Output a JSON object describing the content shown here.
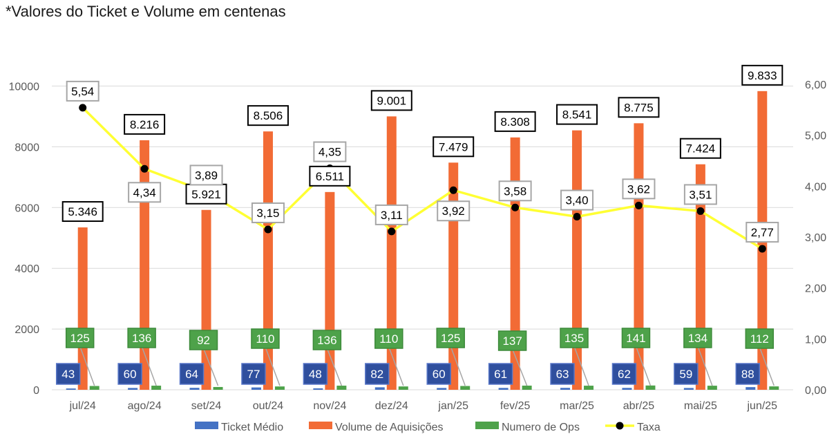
{
  "chart_data": {
    "type": "bar",
    "title": "*Valores do Ticket e Volume em centenas",
    "categories": [
      "jul/24",
      "ago/24",
      "set/24",
      "out/24",
      "nov/24",
      "dez/24",
      "jan/25",
      "fev/25",
      "mar/25",
      "abr/25",
      "mai/25",
      "jun/25"
    ],
    "y_left": {
      "min": 0,
      "max": 10000,
      "ticks": [
        "0",
        "2000",
        "4000",
        "6000",
        "8000",
        "10000"
      ]
    },
    "y_right": {
      "min": 0,
      "max": 6,
      "ticks": [
        "0,00",
        "1,00",
        "2,00",
        "3,00",
        "4,00",
        "5,00",
        "6,00"
      ]
    },
    "series": [
      {
        "name": "Ticket Médio",
        "type": "bar",
        "axis": "left",
        "color": "#4472c4",
        "values": [
          43,
          60,
          64,
          77,
          48,
          82,
          60,
          61,
          63,
          62,
          59,
          88
        ],
        "labels": [
          "43",
          "60",
          "64",
          "77",
          "48",
          "82",
          "60",
          "61",
          "63",
          "62",
          "59",
          "88"
        ]
      },
      {
        "name": "Volume de Aquisições",
        "type": "bar",
        "axis": "left",
        "color": "#f26b35",
        "values": [
          5346,
          8216,
          5921,
          8506,
          6511,
          9001,
          7479,
          8308,
          8541,
          8775,
          7424,
          9833
        ],
        "labels": [
          "5.346",
          "8.216",
          "5.921",
          "8.506",
          "6.511",
          "9.001",
          "7.479",
          "8.308",
          "8.541",
          "8.775",
          "7.424",
          "9.833"
        ]
      },
      {
        "name": "Numero de Ops",
        "type": "bar",
        "axis": "left",
        "color": "#4ea24a",
        "values": [
          125,
          136,
          92,
          110,
          136,
          110,
          125,
          137,
          135,
          141,
          134,
          112
        ],
        "labels": [
          "125",
          "136",
          "92",
          "110",
          "136",
          "110",
          "125",
          "137",
          "135",
          "141",
          "134",
          "112"
        ]
      },
      {
        "name": "Taxa",
        "type": "line",
        "axis": "right",
        "color": "#ffff33",
        "values": [
          5.54,
          4.34,
          3.89,
          3.15,
          4.35,
          3.11,
          3.92,
          3.58,
          3.4,
          3.62,
          3.51,
          2.77
        ],
        "labels": [
          "5,54",
          "4,34",
          "3,89",
          "3,15",
          "4,35",
          "3,11",
          "3,92",
          "3,58",
          "3,40",
          "3,62",
          "3,51",
          "2,77"
        ]
      }
    ],
    "legend_position": "bottom",
    "grid": true
  }
}
